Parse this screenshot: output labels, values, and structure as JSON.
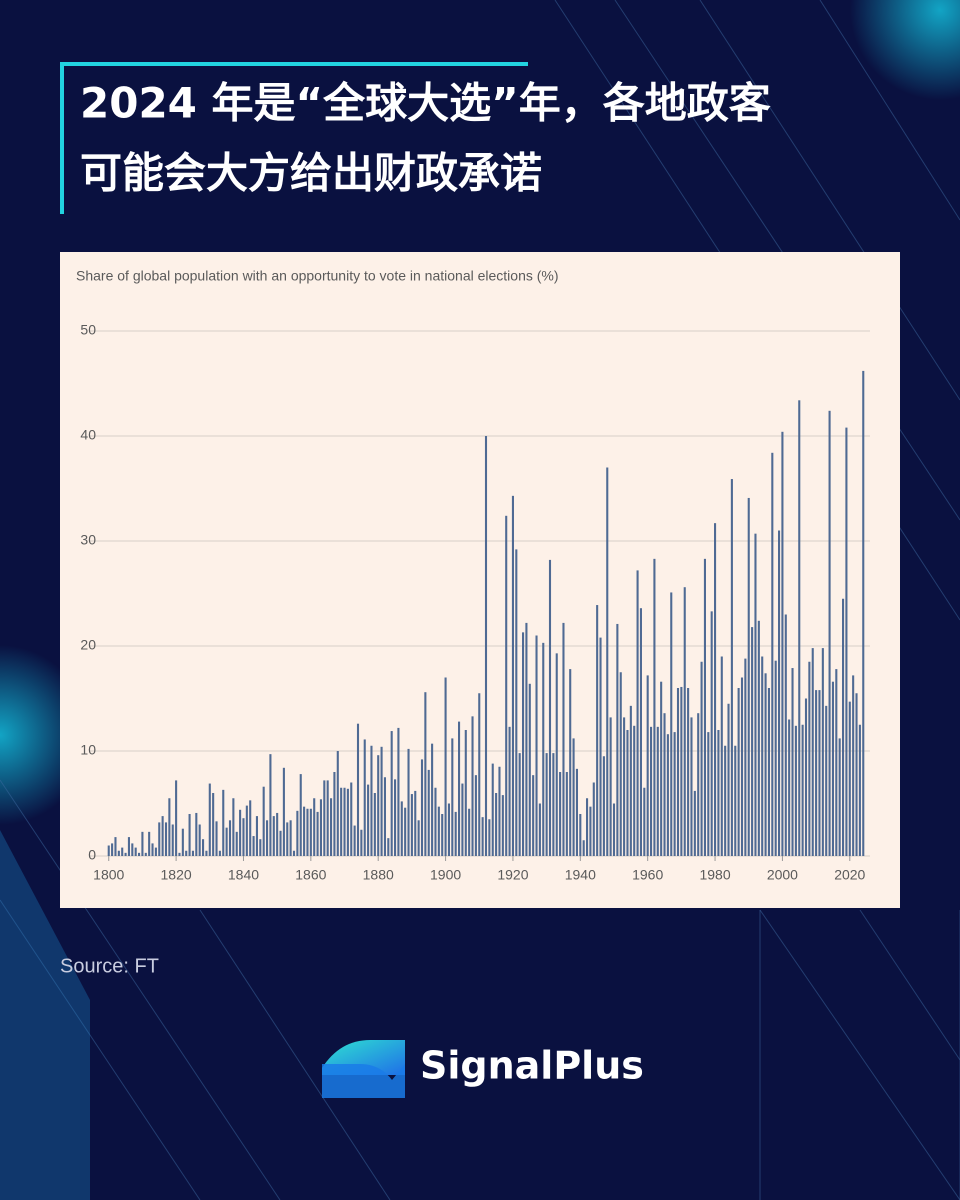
{
  "header": {
    "title_lines": [
      "2024 年是“全球大选”年，各地政客",
      "可能会大方给出财政承诺"
    ]
  },
  "chart_data": {
    "type": "bar",
    "subtitle": "Share of global population with an opportunity to vote in national elections (%)",
    "x": [
      1800,
      1801,
      1802,
      1803,
      1804,
      1805,
      1806,
      1807,
      1808,
      1809,
      1810,
      1811,
      1812,
      1813,
      1814,
      1815,
      1816,
      1817,
      1818,
      1819,
      1820,
      1821,
      1822,
      1823,
      1824,
      1825,
      1826,
      1827,
      1828,
      1829,
      1830,
      1831,
      1832,
      1833,
      1834,
      1835,
      1836,
      1837,
      1838,
      1839,
      1840,
      1841,
      1842,
      1843,
      1844,
      1845,
      1846,
      1847,
      1848,
      1849,
      1850,
      1851,
      1852,
      1853,
      1854,
      1855,
      1856,
      1857,
      1858,
      1859,
      1860,
      1861,
      1862,
      1863,
      1864,
      1865,
      1866,
      1867,
      1868,
      1869,
      1870,
      1871,
      1872,
      1873,
      1874,
      1875,
      1876,
      1877,
      1878,
      1879,
      1880,
      1881,
      1882,
      1883,
      1884,
      1885,
      1886,
      1887,
      1888,
      1889,
      1890,
      1891,
      1892,
      1893,
      1894,
      1895,
      1896,
      1897,
      1898,
      1899,
      1900,
      1901,
      1902,
      1903,
      1904,
      1905,
      1906,
      1907,
      1908,
      1909,
      1910,
      1911,
      1912,
      1913,
      1914,
      1915,
      1916,
      1917,
      1918,
      1919,
      1920,
      1921,
      1922,
      1923,
      1924,
      1925,
      1926,
      1927,
      1928,
      1929,
      1930,
      1931,
      1932,
      1933,
      1934,
      1935,
      1936,
      1937,
      1938,
      1939,
      1940,
      1941,
      1942,
      1943,
      1944,
      1945,
      1946,
      1947,
      1948,
      1949,
      1950,
      1951,
      1952,
      1953,
      1954,
      1955,
      1956,
      1957,
      1958,
      1959,
      1960,
      1961,
      1962,
      1963,
      1964,
      1965,
      1966,
      1967,
      1968,
      1969,
      1970,
      1971,
      1972,
      1973,
      1974,
      1975,
      1976,
      1977,
      1978,
      1979,
      1980,
      1981,
      1982,
      1983,
      1984,
      1985,
      1986,
      1987,
      1988,
      1989,
      1990,
      1991,
      1992,
      1993,
      1994,
      1995,
      1996,
      1997,
      1998,
      1999,
      2000,
      2001,
      2002,
      2003,
      2004,
      2005,
      2006,
      2007,
      2008,
      2009,
      2010,
      2011,
      2012,
      2013,
      2014,
      2015,
      2016,
      2017,
      2018,
      2019,
      2020,
      2021,
      2022,
      2023,
      2024
    ],
    "values": [
      1,
      1.2,
      1.8,
      0.5,
      0.8,
      0.3,
      1.8,
      1.2,
      0.8,
      0.3,
      2.3,
      0.3,
      2.3,
      1.2,
      0.8,
      3.2,
      3.8,
      3.2,
      5.5,
      3,
      7.2,
      0.3,
      2.6,
      0.5,
      4,
      0.5,
      4.1,
      3,
      1.6,
      0.5,
      6.9,
      6,
      3.3,
      0.5,
      6.3,
      2.7,
      3.4,
      5.5,
      2.3,
      4.4,
      3.6,
      4.8,
      5.3,
      1.9,
      3.8,
      1.6,
      6.6,
      3.4,
      9.7,
      3.8,
      4.1,
      2.4,
      8.4,
      3.2,
      3.4,
      0.5,
      4.3,
      7.8,
      4.7,
      4.5,
      4.5,
      5.5,
      4.2,
      5.4,
      7.2,
      7.2,
      5.5,
      8,
      10,
      6.5,
      6.5,
      6.4,
      7,
      2.9,
      12.6,
      2.5,
      11.1,
      6.8,
      10.5,
      6,
      9.6,
      10.4,
      7.5,
      1.7,
      11.9,
      7.3,
      12.2,
      5.2,
      4.6,
      10.2,
      5.9,
      6.2,
      3.4,
      9.2,
      15.6,
      8.2,
      10.7,
      6.5,
      4.7,
      4,
      17,
      5,
      11.2,
      4.2,
      12.8,
      6.9,
      12,
      4.5,
      13.3,
      7.7,
      15.5,
      3.7,
      40,
      3.5,
      8.8,
      6,
      8.5,
      5.8,
      32.4,
      12.3,
      34.3,
      29.2,
      9.8,
      21.3,
      22.2,
      16.4,
      7.7,
      21,
      5,
      20.3,
      9.8,
      28.2,
      9.8,
      19.3,
      8,
      22.2,
      8,
      17.8,
      11.2,
      8.3,
      4,
      1.5,
      5.5,
      4.7,
      7,
      23.9,
      20.8,
      9.5,
      37,
      13.2,
      5,
      22.1,
      17.5,
      13.2,
      12,
      14.3,
      12.4,
      27.2,
      23.6,
      6.5,
      17.2,
      12.3,
      28.3,
      12.3,
      16.6,
      13.6,
      11.6,
      25.1,
      11.8,
      16,
      16.1,
      25.6,
      16,
      13.2,
      6.2,
      13.6,
      18.5,
      28.3,
      11.8,
      23.3,
      31.7,
      12,
      19,
      10.5,
      14.5,
      35.9,
      10.5,
      16,
      17,
      18.8,
      34.1,
      21.8,
      30.7,
      22.4,
      19,
      17.4,
      16,
      38.4,
      18.6,
      31,
      40.4,
      23,
      13,
      17.9,
      12.4,
      43.4,
      12.5,
      15,
      18.5,
      19.8,
      15.8,
      15.8,
      19.8,
      14.3,
      42.4,
      16.6,
      17.8,
      11.2,
      24.5,
      40.8,
      14.7,
      17.2,
      15.5,
      12.5,
      46.2
    ],
    "color": "#4f6a93",
    "xlim": [
      1798,
      2026
    ],
    "xticks": [
      1800,
      1820,
      1840,
      1860,
      1880,
      1900,
      1920,
      1940,
      1960,
      1980,
      2000,
      2020
    ],
    "ylim": [
      0,
      50
    ],
    "yticks": [
      0,
      10,
      20,
      30,
      40,
      50
    ],
    "grid": true
  },
  "footer": {
    "source": "Source: FT",
    "brand": "SignalPlus"
  }
}
